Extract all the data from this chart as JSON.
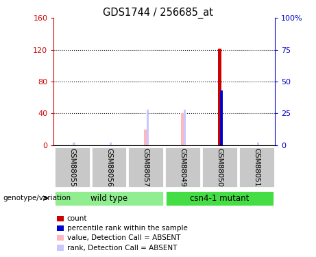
{
  "title": "GDS1744 / 256685_at",
  "samples": [
    "GSM88055",
    "GSM88056",
    "GSM88057",
    "GSM88049",
    "GSM88050",
    "GSM88051"
  ],
  "ylim_left": [
    0,
    160
  ],
  "ylim_right": [
    0,
    100
  ],
  "yticks_left": [
    0,
    40,
    80,
    120,
    160
  ],
  "yticks_right": [
    0,
    25,
    50,
    75,
    100
  ],
  "ytick_labels_left": [
    "0",
    "40",
    "80",
    "120",
    "160"
  ],
  "ytick_labels_right": [
    "0",
    "25",
    "50",
    "75",
    "100%"
  ],
  "left_color": "#CC0000",
  "right_color": "#0000CC",
  "count_values": [
    0,
    0,
    0,
    0,
    121,
    0
  ],
  "rank_values_pct": [
    0,
    0,
    0,
    0,
    43,
    0
  ],
  "absent_value_values": [
    0,
    0,
    20,
    40,
    0,
    0
  ],
  "absent_rank_values_pct": [
    0,
    0,
    28,
    28,
    0,
    0
  ],
  "absent_rank_small_pct": [
    2,
    2,
    0,
    0,
    0,
    2
  ],
  "count_color": "#CC0000",
  "rank_color": "#0000CC",
  "absent_value_color": "#FFB6C1",
  "absent_rank_color": "#C8C8FF",
  "label_area_color": "#C8C8C8",
  "wild_type_color": "#90EE90",
  "csn4_color": "#44DD44",
  "genotype_label": "genotype/variation",
  "legend_items": [
    {
      "color": "#CC0000",
      "label": "count"
    },
    {
      "color": "#0000CC",
      "label": "percentile rank within the sample"
    },
    {
      "color": "#FFB6C1",
      "label": "value, Detection Call = ABSENT"
    },
    {
      "color": "#C8C8FF",
      "label": "rank, Detection Call = ABSENT"
    }
  ]
}
